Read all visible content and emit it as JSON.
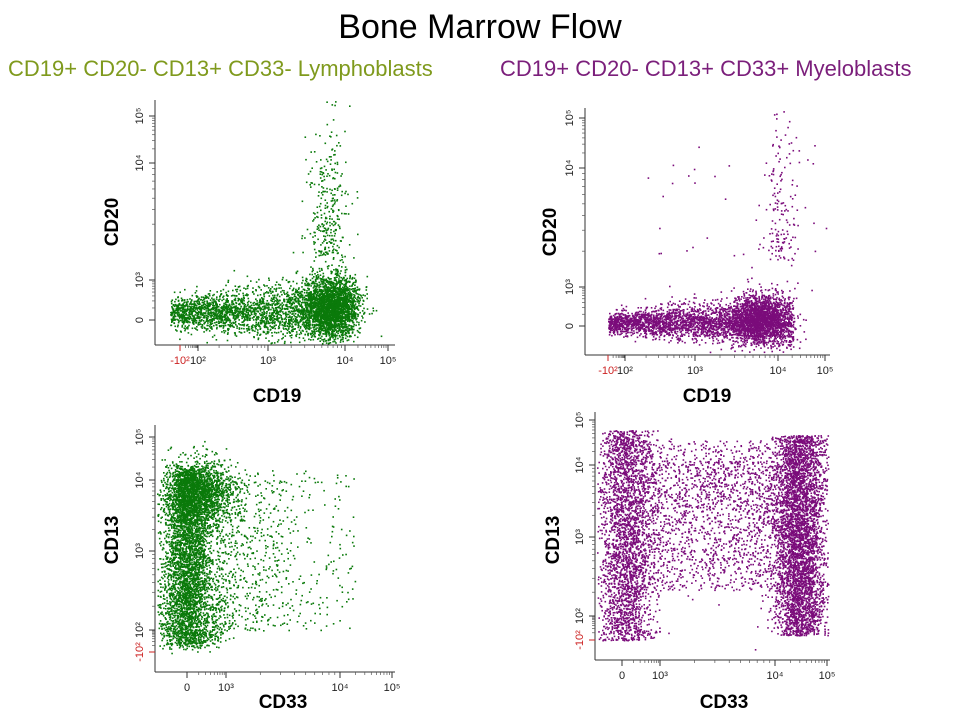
{
  "title": "Bone Marrow Flow",
  "subtitle_left": "CD19+ CD20- CD13+ CD33- Lymphoblasts",
  "subtitle_right": "CD19+ CD20- CD13+ CD33+ Myeloblasts",
  "colors": {
    "green": "#0a7a0a",
    "purple": "#7b0c7b",
    "subtitle_green": "#7f9a1d",
    "subtitle_purple": "#7b1f7b",
    "negative_tick": "#cc2222"
  },
  "chart_data": [
    {
      "type": "scatter",
      "panel": "top-left",
      "population": "Lymphoblasts",
      "xlabel": "CD19",
      "ylabel": "CD20",
      "color": "#0a7a0a",
      "xscale": "logicle",
      "yscale": "logicle",
      "xticks": [
        "-10²",
        "10²",
        "10³",
        "10⁴",
        "10⁵"
      ],
      "yticks": [
        "0",
        "10³",
        "10⁴",
        "10⁵"
      ],
      "clusters": [
        {
          "x_center": 3500,
          "y_center": 50,
          "x_spread": "10²–1.5×10⁴",
          "y_spread": "-100–1000",
          "density": "high"
        },
        {
          "x_center": 5000,
          "y_center": 2000,
          "x_spread": "2×10³–10⁴",
          "y_spread": "10³–4×10⁴",
          "density": "low"
        }
      ]
    },
    {
      "type": "scatter",
      "panel": "top-right",
      "population": "Myeloblasts",
      "xlabel": "CD19",
      "ylabel": "CD20",
      "color": "#7b0c7b",
      "xscale": "logicle",
      "yscale": "logicle",
      "xticks": [
        "-10²",
        "10²",
        "10³",
        "10⁴",
        "10⁵"
      ],
      "yticks": [
        "0",
        "10³",
        "10⁴",
        "10⁵"
      ],
      "clusters": [
        {
          "x_center": 2000,
          "y_center": 0,
          "x_spread": "10²–1.5×10⁴",
          "y_spread": "-100–800",
          "density": "high"
        },
        {
          "x_center": 7000,
          "y_center": 3000,
          "x_spread": "3×10³–1.5×10⁴",
          "y_spread": "10³–3×10⁴",
          "density": "low"
        }
      ]
    },
    {
      "type": "scatter",
      "panel": "bottom-left",
      "population": "Lymphoblasts",
      "xlabel": "CD33",
      "ylabel": "CD13",
      "color": "#0a7a0a",
      "xscale": "logicle",
      "yscale": "logicle",
      "xticks": [
        "0",
        "10³",
        "10⁴",
        "10⁵"
      ],
      "yticks": [
        "-10²",
        "10²",
        "10³",
        "10⁴",
        "10⁵"
      ],
      "clusters": [
        {
          "x_center": 0,
          "y_center": 2000,
          "x_spread": "-100–600",
          "y_spread": "10²–10⁴",
          "density": "high"
        },
        {
          "x_center": 3000,
          "y_center": 3000,
          "x_spread": "600–10⁴",
          "y_spread": "10²–10⁴",
          "density": "low"
        }
      ]
    },
    {
      "type": "scatter",
      "panel": "bottom-right",
      "population": "Myeloblasts",
      "xlabel": "CD33",
      "ylabel": "CD13",
      "color": "#7b0c7b",
      "xscale": "logicle",
      "yscale": "logicle",
      "xticks": [
        "0",
        "10³",
        "10⁴",
        "10⁵"
      ],
      "yticks": [
        "-10²",
        "10²",
        "10³",
        "10⁴",
        "10⁵"
      ],
      "clusters": [
        {
          "x_center": 0,
          "y_center": 1000,
          "x_spread": "-100–300",
          "y_spread": "10²–10⁴",
          "density": "medium"
        },
        {
          "x_center": 15000,
          "y_center": 3000,
          "x_spread": "8×10³–3×10⁴",
          "y_spread": "10²–3×10⁴",
          "density": "high"
        },
        {
          "x_center": 2000,
          "y_center": 5000,
          "x_spread": "300–10⁴",
          "y_spread": "10²–10⁴",
          "density": "low"
        }
      ]
    }
  ]
}
